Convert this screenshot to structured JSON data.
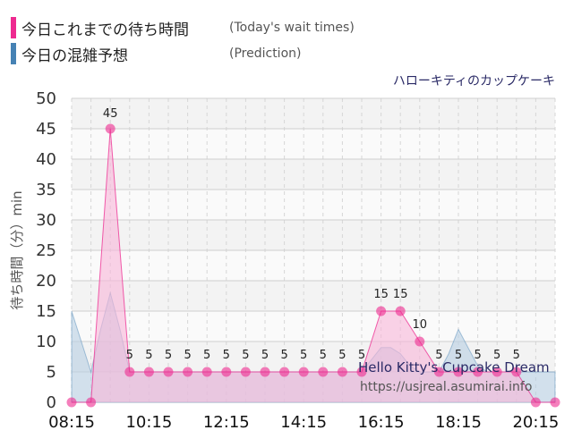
{
  "legend": {
    "today_label": "今日これまでの待ち時間",
    "today_sub": "(Today's wait times)",
    "prediction_label": "今日の混雑予想",
    "prediction_sub": "(Prediction)"
  },
  "ride_name": "ハローキティのカップケーキ",
  "watermark": {
    "line1": "Hello Kitty's Cupcake Dream",
    "line2": "https://usjreal.asumirai.info"
  },
  "colors": {
    "today": "#ee2a90",
    "today_fill": "#f9b6d8",
    "prediction": "#4682b4",
    "prediction_fill": "#b8cfe2"
  },
  "chart_data": {
    "type": "area",
    "ylabel": "待ち時間（分）min",
    "ylim": [
      0,
      50
    ],
    "yticks": [
      0,
      5,
      10,
      15,
      20,
      25,
      30,
      35,
      40,
      45,
      50
    ],
    "xlim": [
      "08:15",
      "20:45"
    ],
    "xticks": [
      "08:15",
      "10:15",
      "12:15",
      "14:15",
      "16:15",
      "18:15",
      "20:15"
    ],
    "grid": true,
    "series": [
      {
        "name": "今日これまでの待ち時間",
        "type": "area",
        "x": [
          "08:15",
          "08:30",
          "08:45",
          "09:00",
          "09:15",
          "09:30",
          "09:45",
          "10:00",
          "10:15",
          "10:30",
          "10:45",
          "11:00",
          "11:15",
          "11:30",
          "11:45",
          "12:00",
          "12:15",
          "12:30",
          "12:45",
          "13:00",
          "13:15",
          "13:30",
          "13:45",
          "14:00",
          "14:15",
          "14:30",
          "14:45",
          "15:00",
          "15:15",
          "15:30",
          "15:45",
          "16:00",
          "16:15",
          "16:30",
          "16:45",
          "17:00",
          "17:15",
          "17:30",
          "17:45",
          "18:00",
          "18:15",
          "18:30",
          "18:45",
          "19:00",
          "19:15",
          "19:30",
          "19:45",
          "20:00",
          "20:15",
          "20:30",
          "20:45"
        ],
        "values": [
          0,
          null,
          0,
          null,
          45,
          null,
          5,
          null,
          5,
          null,
          5,
          null,
          5,
          null,
          5,
          null,
          5,
          null,
          5,
          null,
          5,
          null,
          5,
          null,
          5,
          null,
          5,
          null,
          5,
          null,
          5,
          null,
          15,
          null,
          15,
          null,
          10,
          null,
          5,
          null,
          5,
          null,
          5,
          null,
          5,
          null,
          5,
          null,
          0,
          null,
          0
        ],
        "labels": [
          null,
          null,
          null,
          null,
          "45",
          null,
          "5",
          null,
          "5",
          null,
          "5",
          null,
          "5",
          null,
          "5",
          null,
          "5",
          null,
          "5",
          null,
          "5",
          null,
          "5",
          null,
          "5",
          null,
          "5",
          null,
          "5",
          null,
          "5",
          null,
          "15",
          null,
          "15",
          null,
          "10",
          null,
          "5",
          null,
          "5",
          null,
          "5",
          null,
          "5",
          null,
          "5",
          null,
          null,
          null,
          null
        ]
      },
      {
        "name": "今日の混雑予想",
        "type": "area",
        "x": [
          "08:15",
          "08:30",
          "08:45",
          "09:00",
          "09:15",
          "09:30",
          "09:45",
          "10:00",
          "10:15",
          "10:30",
          "10:45",
          "11:00",
          "11:15",
          "11:30",
          "11:45",
          "12:00",
          "12:15",
          "12:30",
          "12:45",
          "13:00",
          "13:15",
          "13:30",
          "13:45",
          "14:00",
          "14:15",
          "14:30",
          "14:45",
          "15:00",
          "15:15",
          "15:30",
          "15:45",
          "16:00",
          "16:15",
          "16:30",
          "16:45",
          "17:00",
          "17:15",
          "17:30",
          "17:45",
          "18:00",
          "18:15",
          "18:30",
          "18:45",
          "19:00",
          "19:15",
          "19:30",
          "19:45",
          "20:00",
          "20:15",
          "20:30",
          "20:45"
        ],
        "values": [
          15,
          10,
          5,
          12,
          18,
          12,
          5,
          5,
          5,
          5,
          5,
          5,
          5,
          5,
          5,
          5,
          5,
          5,
          5,
          5,
          5,
          5,
          5,
          5,
          5,
          5,
          5,
          5,
          5,
          5,
          5,
          7,
          9,
          9,
          8,
          6,
          5,
          5,
          5,
          8,
          12,
          9,
          6,
          5,
          5,
          5,
          5,
          5,
          5,
          5,
          5
        ]
      }
    ]
  }
}
